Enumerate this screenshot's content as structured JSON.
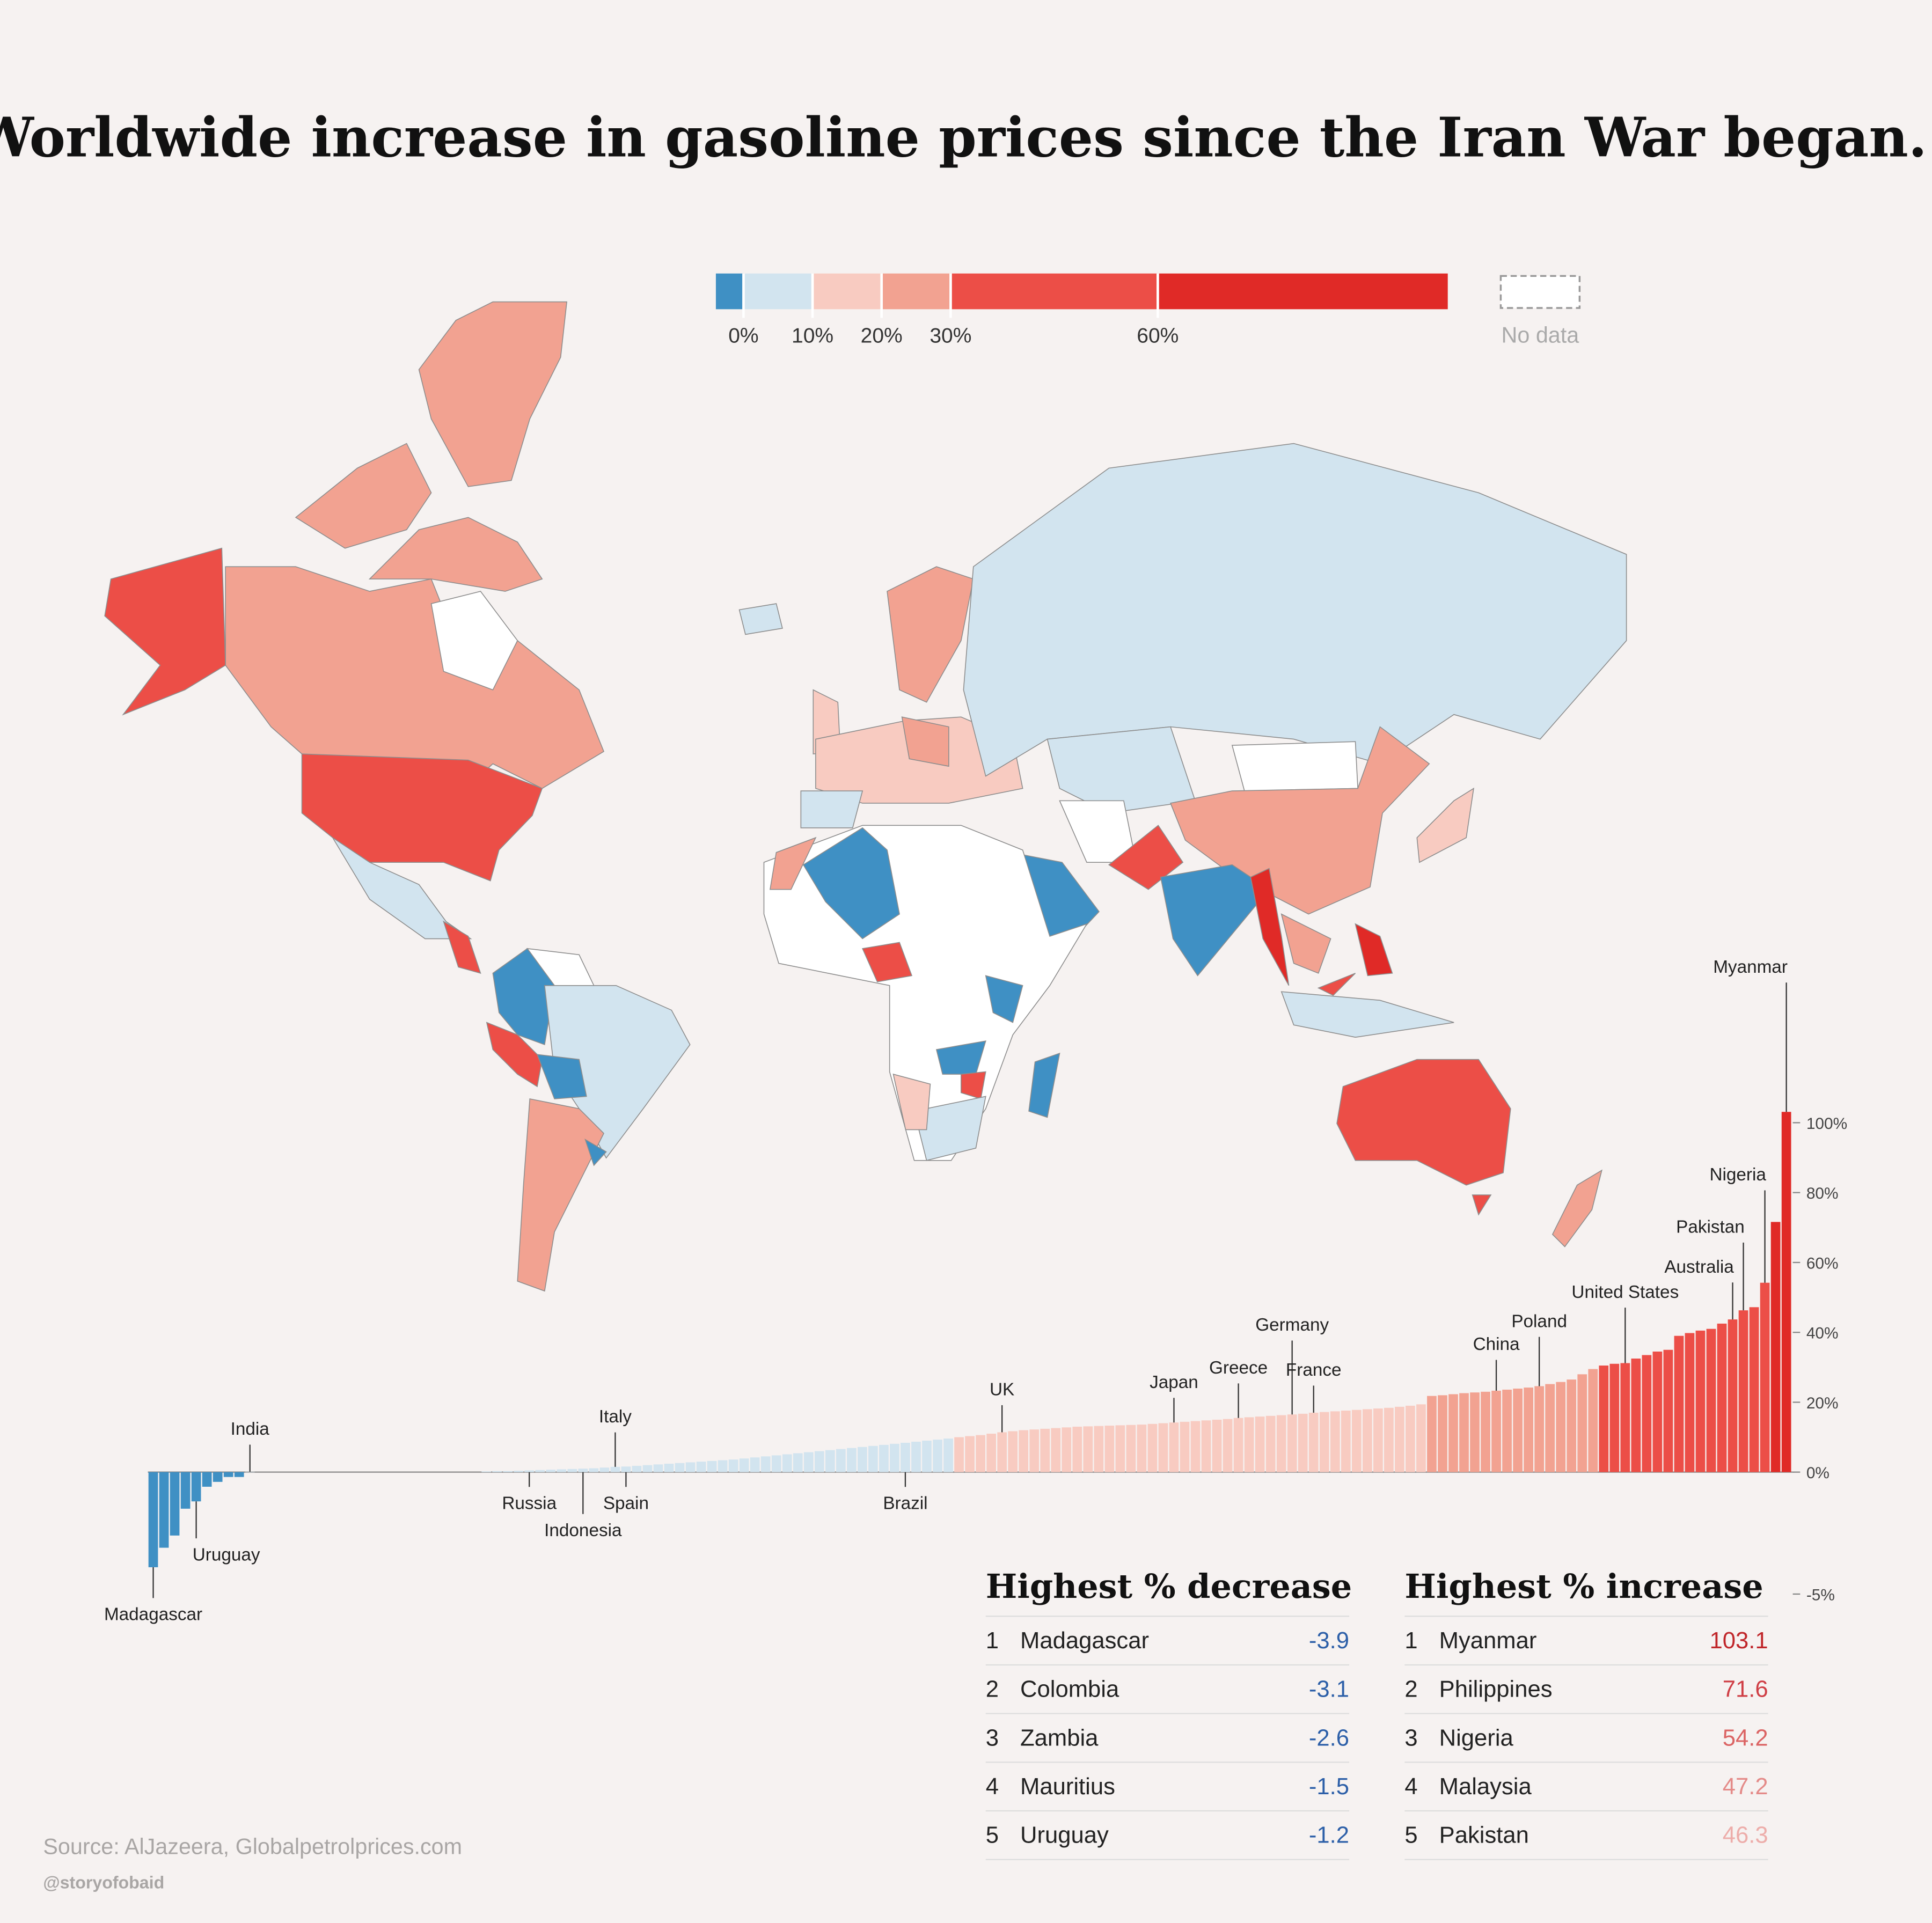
{
  "chart_data": {
    "type": "bar",
    "title": "Worldwide increase in gasoline prices since the Iran War began.",
    "categories": [
      "Madagascar",
      null,
      null,
      null,
      "Uruguay",
      null,
      null,
      null,
      null,
      "India",
      null,
      null,
      null,
      null,
      null,
      null,
      null,
      null,
      null,
      null,
      null,
      null,
      null,
      null,
      null,
      null,
      null,
      null,
      null,
      null,
      null,
      null,
      null,
      null,
      null,
      "Russia",
      null,
      null,
      null,
      null,
      "Indonesia",
      null,
      null,
      "Italy",
      "Spain",
      null,
      null,
      null,
      null,
      null,
      null,
      null,
      null,
      null,
      null,
      null,
      null,
      null,
      null,
      null,
      null,
      null,
      null,
      null,
      null,
      null,
      null,
      null,
      null,
      null,
      "Brazil",
      null,
      null,
      null,
      null,
      null,
      null,
      null,
      null,
      "UK",
      null,
      null,
      null,
      null,
      null,
      null,
      null,
      null,
      null,
      null,
      null,
      null,
      null,
      null,
      null,
      "Japan",
      null,
      null,
      null,
      null,
      null,
      "Greece",
      null,
      null,
      null,
      null,
      "Germany",
      null,
      "France",
      null,
      null,
      null,
      null,
      null,
      null,
      null,
      null,
      null,
      null,
      null,
      null,
      null,
      null,
      null,
      null,
      "China",
      null,
      null,
      null,
      "Poland",
      null,
      null,
      null,
      null,
      null,
      null,
      null,
      "United States",
      null,
      null,
      null,
      null,
      null,
      null,
      null,
      null,
      null,
      "Australia",
      "Pakistan",
      null,
      "Nigeria",
      null,
      "Myanmar"
    ],
    "values": [
      -3.9,
      -3.1,
      -2.6,
      -1.5,
      -1.2,
      -0.6,
      -0.4,
      -0.2,
      -0.2,
      0.1,
      0,
      0,
      0,
      0,
      0,
      0,
      0,
      0,
      0,
      0,
      0,
      0,
      0,
      0,
      0,
      0,
      0,
      0,
      0,
      0,
      0,
      0.2,
      0.3,
      0.3,
      0.4,
      0.5,
      0.6,
      0.7,
      0.8,
      0.9,
      1.0,
      1.1,
      1.3,
      1.5,
      1.6,
      1.8,
      2.0,
      2.2,
      2.4,
      2.6,
      2.8,
      3.0,
      3.2,
      3.4,
      3.6,
      3.9,
      4.2,
      4.5,
      4.8,
      5.1,
      5.4,
      5.7,
      6.0,
      6.3,
      6.6,
      6.9,
      7.2,
      7.5,
      7.8,
      8.1,
      8.4,
      8.7,
      9.0,
      9.3,
      9.6,
      10.0,
      10.3,
      10.6,
      11.0,
      11.4,
      11.7,
      12.0,
      12.2,
      12.4,
      12.6,
      12.8,
      13.0,
      13.1,
      13.2,
      13.3,
      13.4,
      13.5,
      13.6,
      13.8,
      14.0,
      14.2,
      14.4,
      14.6,
      14.8,
      15.0,
      15.2,
      15.5,
      15.7,
      15.9,
      16.1,
      16.3,
      16.5,
      16.7,
      17.0,
      17.2,
      17.4,
      17.6,
      17.8,
      18.0,
      18.2,
      18.4,
      18.7,
      19.0,
      19.4,
      21.8,
      22.0,
      22.3,
      22.6,
      22.8,
      23.0,
      23.3,
      23.6,
      23.9,
      24.2,
      24.6,
      25.2,
      25.8,
      26.5,
      28.0,
      29.5,
      30.5,
      31.0,
      31.2,
      32.5,
      33.5,
      34.5,
      35.0,
      39.0,
      39.8,
      40.5,
      41.0,
      42.5,
      43.7,
      46.3,
      47.2,
      54.2,
      71.6,
      103.1
    ],
    "ylim": [
      -5,
      110
    ],
    "yticks": [
      {
        "value": -5,
        "label": "-5%"
      },
      {
        "value": 0,
        "label": "0%"
      },
      {
        "value": 20,
        "label": "20%"
      },
      {
        "value": 40,
        "label": "40%"
      },
      {
        "value": 60,
        "label": "60%"
      },
      {
        "value": 80,
        "label": "80%"
      },
      {
        "value": 100,
        "label": "100%"
      }
    ],
    "legend": {
      "lim": [
        -4,
        102
      ],
      "ticks": [
        {
          "value": 0,
          "label": "0%"
        },
        {
          "value": 10,
          "label": "10%"
        },
        {
          "value": 20,
          "label": "20%"
        },
        {
          "value": 30,
          "label": "30%"
        },
        {
          "value": 60,
          "label": "60%"
        }
      ],
      "colors": [
        "#3f90c4",
        "#d2e4ef",
        "#f8cbc1",
        "#f2a291",
        "#ec4e47",
        "#e02a27"
      ],
      "no_data": "No data"
    }
  },
  "tables": [
    {
      "title": "Highest % decrease",
      "value_color": [
        "#2c5fa8",
        "#2c5fa8",
        "#2c5fa8",
        "#2c5fa8",
        "#2c5fa8"
      ],
      "rows": [
        [
          "1",
          "Madagascar",
          -3.9
        ],
        [
          "2",
          "Colombia",
          -3.1
        ],
        [
          "3",
          "Zambia",
          -2.6
        ],
        [
          "4",
          "Mauritius",
          -1.5
        ],
        [
          "5",
          "Uruguay",
          -1.2
        ]
      ]
    },
    {
      "title": "Highest % increase",
      "value_color": [
        "#c0262a",
        "#cf3e45",
        "#db6464",
        "#e48b89",
        "#edadaa"
      ],
      "rows": [
        [
          "1",
          "Myanmar",
          103.1
        ],
        [
          "2",
          "Philippines",
          71.6
        ],
        [
          "3",
          "Nigeria",
          54.2
        ],
        [
          "4",
          "Malaysia",
          47.2
        ],
        [
          "5",
          "Pakistan",
          46.3
        ]
      ]
    }
  ],
  "source": "Source: AlJazeera, Globalpetrolprices.com",
  "credit": "@storyofobaid"
}
